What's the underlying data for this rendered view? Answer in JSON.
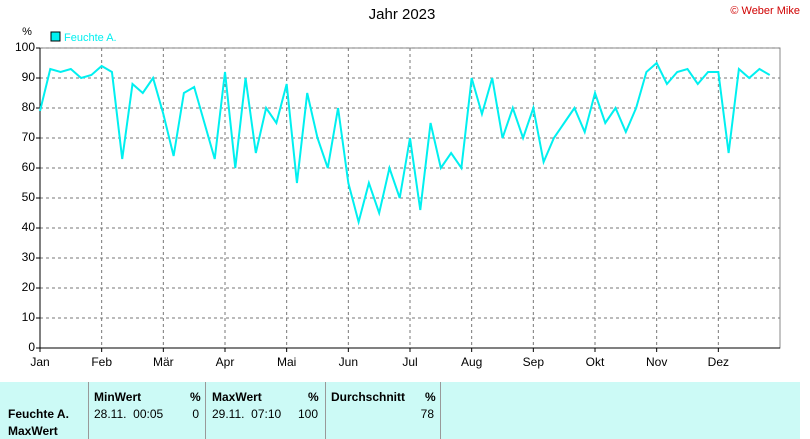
{
  "chart_data": {
    "type": "line",
    "title": "Jahr 2023",
    "credit": "© Weber Mike",
    "y_unit": "%",
    "categories": [
      "Jan",
      null,
      null,
      null,
      null,
      null,
      "Feb",
      null,
      null,
      null,
      null,
      null,
      "Mär",
      null,
      null,
      null,
      null,
      null,
      "Apr",
      null,
      null,
      null,
      null,
      null,
      "Mai",
      null,
      null,
      null,
      null,
      null,
      "Jun",
      null,
      null,
      null,
      null,
      null,
      "Jul",
      null,
      null,
      null,
      null,
      null,
      "Aug",
      null,
      null,
      null,
      null,
      null,
      "Sep",
      null,
      null,
      null,
      null,
      null,
      "Okt",
      null,
      null,
      null,
      null,
      null,
      "Nov",
      null,
      null,
      null,
      null,
      null,
      "Dez",
      null,
      null,
      null,
      null,
      null
    ],
    "series": [
      {
        "name": "Feuchte A.",
        "color": "#00f0f0",
        "values": [
          79,
          93,
          92,
          93,
          90,
          91,
          94,
          92,
          63,
          88,
          85,
          90,
          78,
          64,
          85,
          87,
          75,
          63,
          92,
          60,
          90,
          65,
          80,
          75,
          88,
          55,
          85,
          70,
          60,
          80,
          55,
          42,
          55,
          45,
          60,
          50,
          70,
          46,
          75,
          60,
          65,
          60,
          90,
          78,
          90,
          70,
          80,
          70,
          80,
          62,
          70,
          75,
          80,
          72,
          85,
          75,
          80,
          72,
          80,
          92,
          95,
          88,
          92,
          93,
          88,
          92,
          92,
          65,
          93,
          90,
          93,
          91
        ]
      }
    ],
    "ylim": [
      0,
      100
    ],
    "yticks": [
      0,
      10,
      20,
      30,
      40,
      50,
      60,
      70,
      80,
      90,
      100
    ],
    "grid": true,
    "legend": "top-left"
  },
  "table": {
    "headers": [
      "MinWert",
      "%",
      "MaxWert",
      "%",
      "Durchschnitt",
      "%"
    ],
    "row_label": [
      "Feuchte A.",
      "MaxWert"
    ],
    "cells": [
      "28.11.  00:05",
      0,
      "29.11.  07:10",
      100,
      78
    ]
  }
}
